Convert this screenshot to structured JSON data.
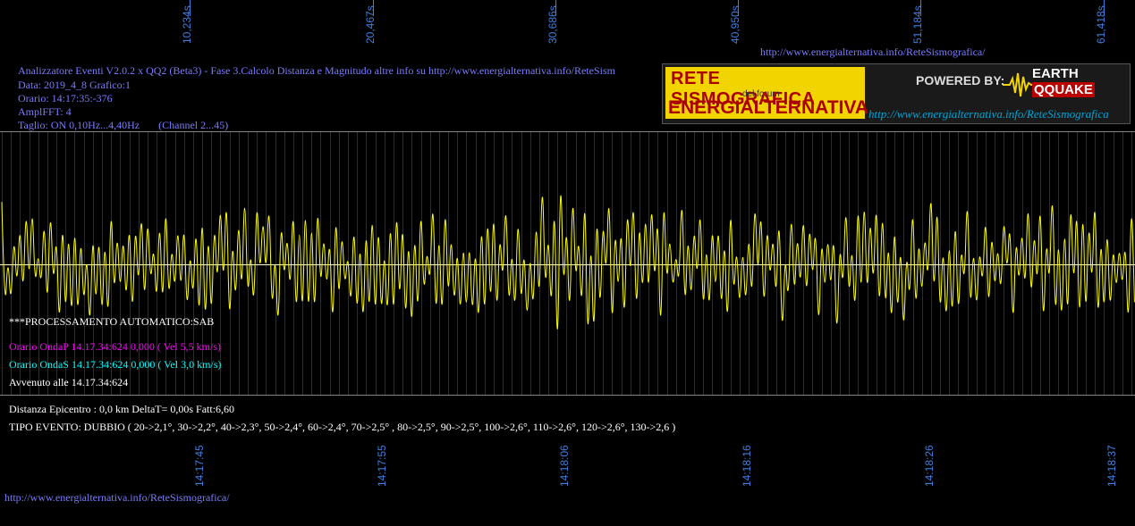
{
  "top_url": "http://www.energialternativa.info/ReteSismografica/",
  "bottom_url": "http://www.energialternativa.info/ReteSismografica/",
  "header": {
    "line1": "Analizzatore Eventi V2.0.2 x QQ2 (Beta3) - Fase 3.Calcolo Distanza e Magnitudo altre info su http://www.energialternativa.info/ReteSism",
    "line2": "Data: 2019_4_8 Grafico:1",
    "line3": "Orario: 14:17:35:-376",
    "line4": "AmplFFT: 4",
    "line5": "Taglio: ON 0,10Hz...4,40Hz       (Channel 2...45)"
  },
  "logo": {
    "title_top": "RETE SISMOGRAFICA",
    "title_mid": "del forum",
    "title_bottom": "ENERGIALTERNATIVA",
    "powered": "POWERED BY:",
    "brand_top": "EARTH",
    "brand_bottom": "QQUAKE",
    "url": "http://www.energialternativa.info/ReteSismografica"
  },
  "results": {
    "processing": "***PROCESSAMENTO AUTOMATICO:SAB",
    "wave_p": "Orario OndaP 14.17.34:624  0,000 ( Vel 5,5 km/s)",
    "wave_s": "Orario OndaS 14.17.34:624  0,000 ( Vel 3,0 km/s)",
    "occurred": "Avvenuto alle 14.17.34:624",
    "distance": "Distanza Epicentro : 0,0 km DeltaT= 0,00s  Fatt:6,60",
    "event_type": "TIPO EVENTO: DUBBIO ( 20->2,1°, 30->2,2°, 40->2,3°, 50->2,4°, 60->2,4°, 70->2,5° , 80->2,5°, 90->2,5°, 100->2,6°, 110->2,6°, 120->2,6°, 130->2,6 )"
  },
  "colors": {
    "background": "#000000",
    "trace": "#ffff00",
    "grid": "#6a6a6a",
    "axis_labels": "#3f7fe0",
    "header_text": "#7b7bff",
    "wave_p": "#ff00ff",
    "wave_s": "#00ffff",
    "white_text": "#ffffff"
  },
  "chart_data": {
    "type": "line",
    "title": "",
    "top_axis_ticks": [
      "10,234s",
      "20,467s",
      "30,686s",
      "40,950s",
      "51,184s",
      "61,418s"
    ],
    "bottom_axis_ticks": [
      "14:17:45",
      "14:17:55",
      "14:18:06",
      "14:18:16",
      "14:18:26",
      "14:18:37"
    ],
    "series": [
      {
        "color": "#ffff00",
        "x_range": [
          0,
          62.1
        ],
        "y_range": [
          -1,
          1
        ],
        "samples_per_second": 6,
        "envelope": {
          "t": [
            0,
            8,
            14,
            20,
            26,
            28.5,
            30.7,
            33,
            38,
            44,
            50,
            56,
            62.1
          ],
          "amplitude": [
            0.55,
            0.6,
            0.72,
            0.62,
            0.6,
            0.72,
            1.0,
            0.72,
            0.65,
            0.62,
            0.7,
            0.68,
            0.7
          ]
        }
      }
    ],
    "grid": true,
    "grid_vertical_step_s": 0.5,
    "baseline": 0
  }
}
